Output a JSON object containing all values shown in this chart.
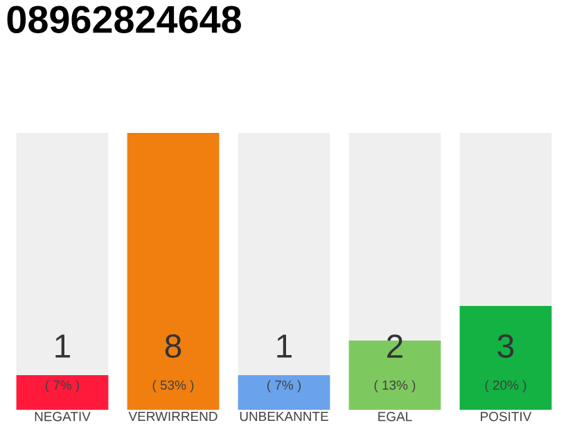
{
  "chart_data": {
    "type": "bar",
    "title": "08962824648",
    "categories": [
      "NEGATIV",
      "VERWIRREND",
      "UNBEKANNTE",
      "EGAL",
      "POSITIV"
    ],
    "stacked": true,
    "series": [
      {
        "colors": [
          "#ff1a3c",
          "#f07f0f",
          "#6aa2ec",
          "#7ec95f",
          "#13b243"
        ],
        "values": [
          1,
          8,
          1,
          2,
          3
        ],
        "value_labels": [
          "1",
          "8",
          "1",
          "2",
          "3"
        ]
      },
      {
        "color": "#efefef",
        "values": [
          7,
          null,
          7,
          6,
          5
        ]
      }
    ],
    "annotations": [
      "( 7% )",
      "( 53% )",
      "( 7% )",
      "( 13% )",
      "( 20% )"
    ],
    "ylim": [
      0,
      8
    ],
    "tick_labels": "x"
  }
}
